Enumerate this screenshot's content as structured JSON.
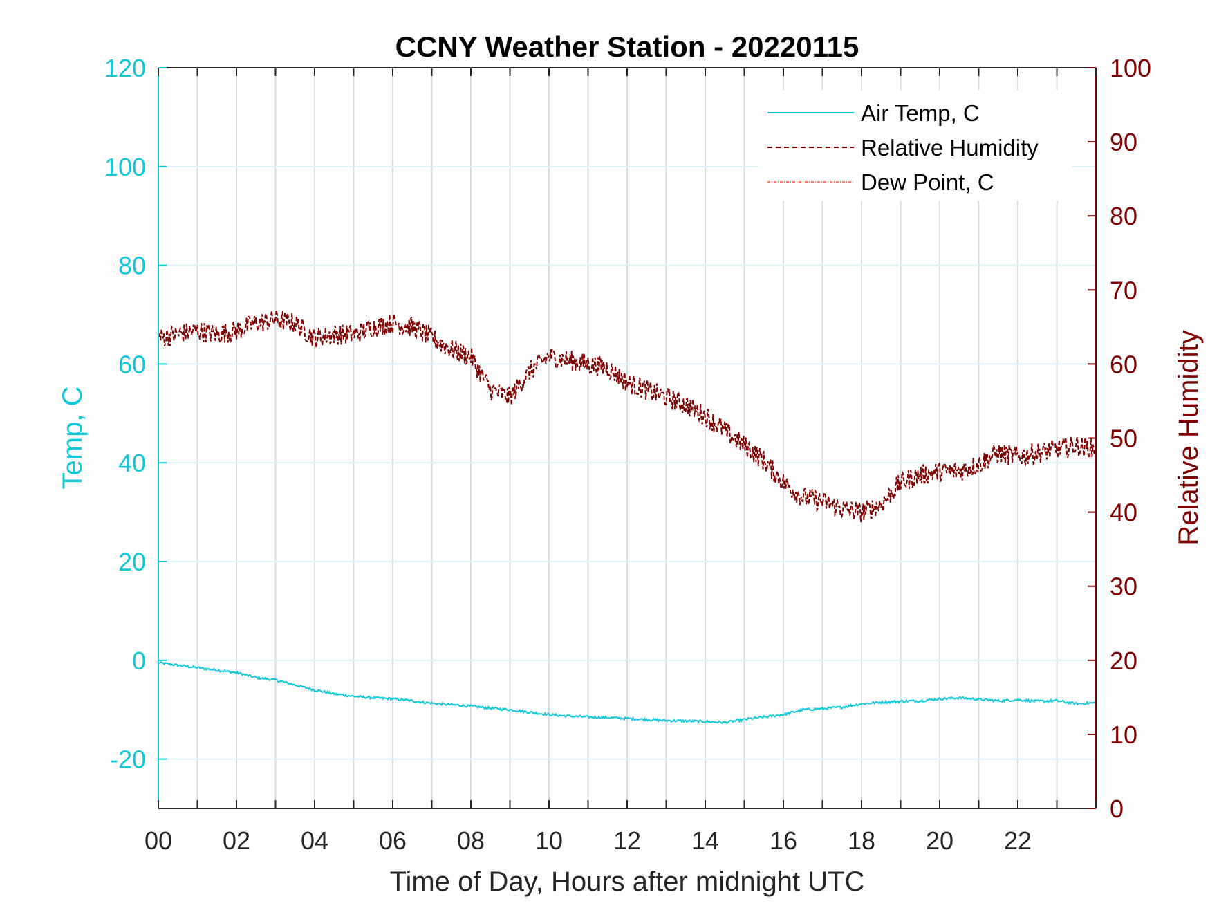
{
  "chart_data": {
    "type": "line",
    "title": "CCNY Weather Station - 20220115",
    "xlabel": "Time of Day, Hours after midnight UTC",
    "ylabel_left": "Temp, C",
    "ylabel_right": "Relative Humidity",
    "xlim": [
      0,
      24
    ],
    "ylim_left": [
      -30,
      120
    ],
    "ylim_right": [
      0,
      100
    ],
    "x_ticks": [
      0,
      2,
      4,
      6,
      8,
      10,
      12,
      14,
      16,
      18,
      20,
      22
    ],
    "x_tick_labels": [
      "00",
      "02",
      "04",
      "06",
      "08",
      "10",
      "12",
      "14",
      "16",
      "18",
      "20",
      "22"
    ],
    "y_left_ticks": [
      -20,
      0,
      20,
      40,
      60,
      80,
      100,
      120
    ],
    "y_left_tick_labels": [
      "-20",
      "0",
      "20",
      "40",
      "60",
      "80",
      "100",
      "120"
    ],
    "y_right_ticks": [
      0,
      10,
      20,
      30,
      40,
      50,
      60,
      70,
      80,
      90,
      100
    ],
    "y_right_tick_labels": [
      "0",
      "10",
      "20",
      "30",
      "40",
      "50",
      "60",
      "70",
      "80",
      "90",
      "100"
    ],
    "grid": true,
    "legend_position": "top-right",
    "colors": {
      "temp": "#12c8d8",
      "rh": "#800000",
      "dew": "#ff4d3a"
    },
    "series": [
      {
        "name": "Air Temp, C",
        "axis": "left",
        "style": "solid",
        "x": [
          0,
          0.5,
          1,
          1.5,
          2,
          2.5,
          3,
          3.5,
          4,
          4.5,
          5,
          5.5,
          6,
          6.5,
          7,
          7.5,
          8,
          8.5,
          9,
          9.5,
          10,
          10.5,
          11,
          11.5,
          12,
          12.5,
          13,
          13.5,
          14,
          14.5,
          15,
          15.5,
          16,
          16.5,
          17,
          17.5,
          18,
          18.5,
          19,
          19.5,
          20,
          20.5,
          21,
          21.5,
          22,
          22.5,
          23,
          23.5,
          24
        ],
        "values": [
          -0.5,
          -1.0,
          -1.5,
          -2.0,
          -2.5,
          -3.5,
          -4.0,
          -5.0,
          -6.0,
          -6.8,
          -7.3,
          -7.6,
          -7.8,
          -8.2,
          -8.7,
          -9.0,
          -9.3,
          -9.7,
          -10.0,
          -10.5,
          -11.0,
          -11.3,
          -11.5,
          -11.6,
          -11.8,
          -12.0,
          -12.2,
          -12.3,
          -12.4,
          -12.6,
          -12.0,
          -11.5,
          -11.0,
          -10.0,
          -9.8,
          -9.5,
          -8.8,
          -8.5,
          -8.3,
          -8.2,
          -7.8,
          -7.6,
          -7.9,
          -8.2,
          -8.0,
          -8.3,
          -8.2,
          -8.8,
          -8.6
        ]
      },
      {
        "name": "Relative Humidity",
        "axis": "right",
        "style": "dashed",
        "x": [
          0,
          0.5,
          1,
          1.5,
          2,
          2.5,
          3,
          3.5,
          4,
          4.5,
          5,
          5.5,
          6,
          6.5,
          7,
          7.5,
          8,
          8.5,
          9,
          9.5,
          10,
          10.5,
          11,
          11.5,
          12,
          12.5,
          13,
          13.5,
          14,
          14.5,
          15,
          15.5,
          16,
          16.5,
          17,
          17.5,
          18,
          18.5,
          19,
          19.5,
          20,
          20.5,
          21,
          21.5,
          22,
          22.5,
          23,
          23.5,
          24
        ],
        "values": [
          63.5,
          64.0,
          64.5,
          64.0,
          64.5,
          65.5,
          66.0,
          65.5,
          63.5,
          64.0,
          64.0,
          65.0,
          65.5,
          65.0,
          63.5,
          62.0,
          61.0,
          56.5,
          55.5,
          59.0,
          61.0,
          60.5,
          60.0,
          59.5,
          57.5,
          56.5,
          55.5,
          54.5,
          53.0,
          51.0,
          49.0,
          47.0,
          44.0,
          42.0,
          41.5,
          40.5,
          40.0,
          41.0,
          44.0,
          45.0,
          45.5,
          45.5,
          46.5,
          48.0,
          47.5,
          48.0,
          48.5,
          49.0,
          48.5
        ]
      },
      {
        "name": "Dew Point, C",
        "axis": "left",
        "style": "dash-dot",
        "x": [],
        "values": []
      }
    ]
  }
}
